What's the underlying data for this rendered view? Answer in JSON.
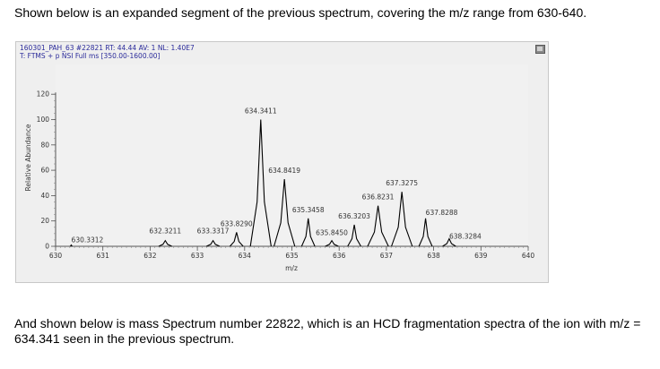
{
  "intro_text": "Shown below is an expanded segment of the previous spectrum, covering the m/z range from 630-640.",
  "outro_text": "And shown below is mass Spectrum number 22822, which is an HCD fragmentation spectra of the ion with m/z = 634.341 seen in the previous spectrum.",
  "spectrum_header": {
    "line1": "160301_PAH_63 #22821  RT: 44.44  AV: 1  NL: 1.40E7",
    "line2": "T: FTMS + p NSI Full ms [350.00-1600.00]"
  },
  "chart_data": {
    "type": "line",
    "title": "",
    "xlabel": "m/z",
    "ylabel": "Relative Abundance",
    "xlim": [
      630,
      640
    ],
    "ylim": [
      0,
      120
    ],
    "xticks": [
      630,
      631,
      632,
      633,
      634,
      635,
      636,
      637,
      638,
      639,
      640
    ],
    "yticks": [
      0,
      20,
      40,
      60,
      80,
      100,
      120
    ],
    "grid": false,
    "peaks": [
      {
        "mz": 630.3312,
        "intensity": 0.3,
        "label": "630.3312"
      },
      {
        "mz": 632.3211,
        "intensity": 4.5,
        "label": "632.3211"
      },
      {
        "mz": 633.3317,
        "intensity": 4.5,
        "label": "633.3317"
      },
      {
        "mz": 633.829,
        "intensity": 11,
        "label": "633.8290"
      },
      {
        "mz": 634.3411,
        "intensity": 100,
        "label": "634.3411"
      },
      {
        "mz": 634.8419,
        "intensity": 53,
        "label": "634.8419"
      },
      {
        "mz": 635.3458,
        "intensity": 22,
        "label": "635.3458"
      },
      {
        "mz": 635.845,
        "intensity": 4.5,
        "label": "635.8450"
      },
      {
        "mz": 636.3203,
        "intensity": 17,
        "label": "636.3203"
      },
      {
        "mz": 636.8231,
        "intensity": 32,
        "label": "636.8231"
      },
      {
        "mz": 637.3275,
        "intensity": 43,
        "label": "637.3275"
      },
      {
        "mz": 637.8288,
        "intensity": 22,
        "label": "637.8288"
      },
      {
        "mz": 638.3284,
        "intensity": 6,
        "label": "638.3284"
      }
    ],
    "colors": {
      "peak": "#000000",
      "label": "#333333",
      "axis": "#555555"
    }
  }
}
